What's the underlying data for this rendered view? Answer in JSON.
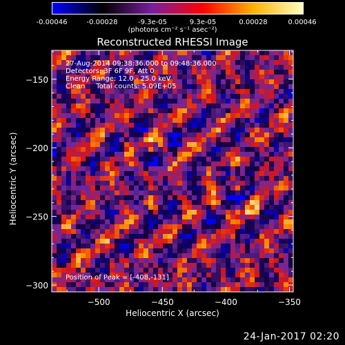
{
  "colorbar": {
    "ticks": [
      "-0.00046",
      "-0.00028",
      "-9.3e-05",
      "9.3e-05",
      "0.00028",
      "0.00046"
    ],
    "units": "(photons cm⁻² s⁻¹ asec⁻²)",
    "colors": [
      "#0000ff",
      "#000000",
      "#7a1fa0",
      "#ff0000",
      "#ffb000",
      "#ffffc0"
    ]
  },
  "title": "Reconstructed RHESSI Image",
  "info": {
    "line1": "27-Aug-2014 09:38:36.000 to 09:48:36.000",
    "line2": "Detectors: 3F 6F 9F, Att 0",
    "line3": "Energy Range: 12.0 - 25.0 keV",
    "line4": "Clean     Total counts: 5.09E+05",
    "peak": "Position of Peak = [-408,-131]"
  },
  "footer_date": "24-Jan-2017 02:20",
  "chart_data": {
    "type": "heatmap",
    "title": "Reconstructed RHESSI Image",
    "xlabel": "Heliocentric X (arcsec)",
    "ylabel": "Heliocentric Y (arcsec)",
    "xlim": [
      -537,
      -347
    ],
    "ylim": [
      -305,
      -129
    ],
    "xticks": [
      -500,
      -450,
      -400,
      -350
    ],
    "yticks": [
      -150,
      -200,
      -250,
      -300
    ],
    "value_range": [
      -0.00046,
      0.00046
    ],
    "peak": [
      -408,
      -131
    ],
    "grid": false
  }
}
